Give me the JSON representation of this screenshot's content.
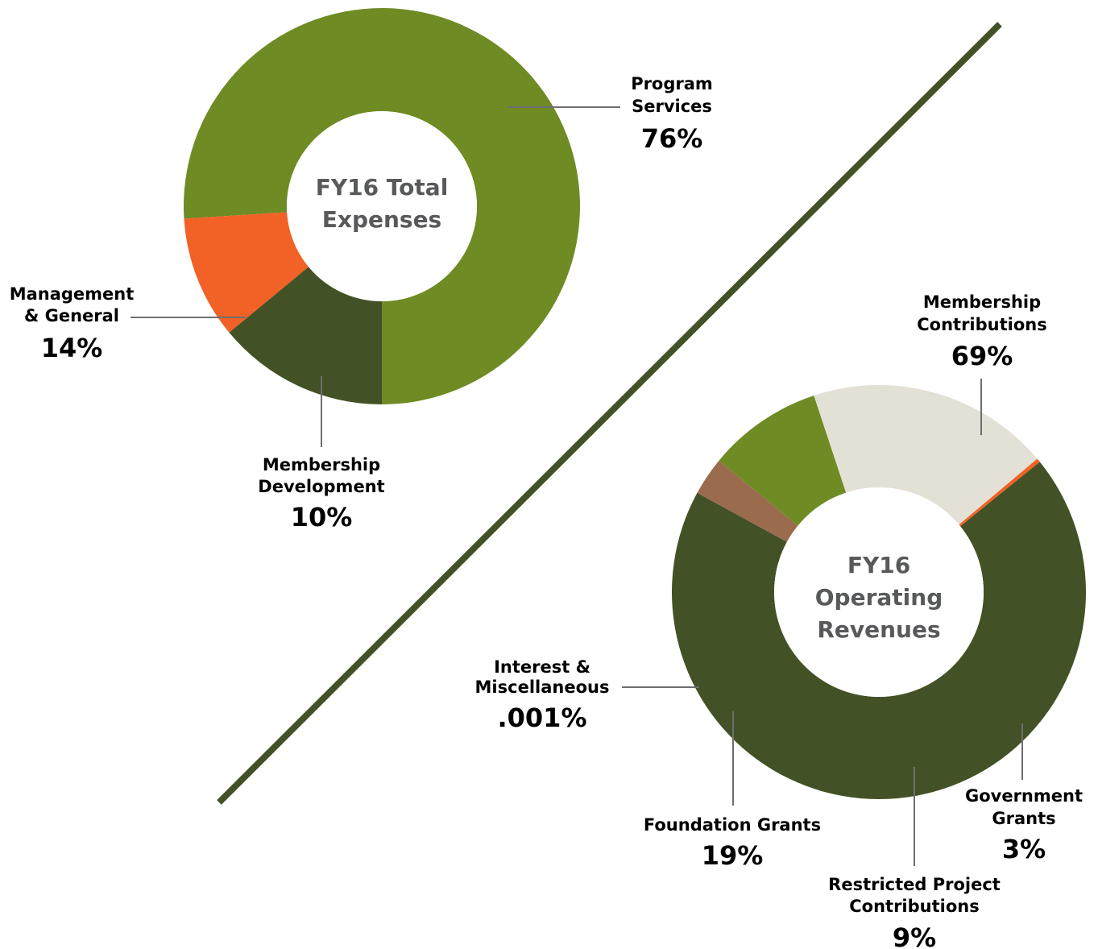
{
  "chart_data": [
    {
      "type": "pie",
      "variant": "donut",
      "title": [
        "FY16 Total",
        "Expenses"
      ],
      "series": [
        {
          "name": [
            "Program",
            "Services"
          ],
          "label": "76%",
          "value": 76,
          "color": "#6e8b24"
        },
        {
          "name": [
            "Membership",
            "Development"
          ],
          "label": "10%",
          "value": 10,
          "color": "#f26125"
        },
        {
          "name": [
            "Management",
            "& General"
          ],
          "label": "14%",
          "value": 14,
          "color": "#435226"
        }
      ]
    },
    {
      "type": "pie",
      "variant": "donut",
      "title": [
        "FY16",
        "Operating",
        "Revenues"
      ],
      "series": [
        {
          "name": [
            "Membership",
            "Contributions"
          ],
          "label": "69%",
          "value": 69,
          "color": "#435226"
        },
        {
          "name": [
            "Government",
            "Grants"
          ],
          "label": "3%",
          "value": 3,
          "color": "#9a6c4d"
        },
        {
          "name": [
            "Restricted Project",
            "Contributions"
          ],
          "label": "9%",
          "value": 9,
          "color": "#6e8b24"
        },
        {
          "name": [
            "Foundation Grants"
          ],
          "label": "19%",
          "value": 19,
          "color": "#e3e1d5"
        },
        {
          "name": [
            "Interest &",
            "Miscellaneous"
          ],
          "label": ".001%",
          "value": 0.001,
          "color": "#f26125"
        }
      ]
    }
  ],
  "colors": {
    "divider": "#435226",
    "center_text": "#58595b",
    "leader": "#6d6e71"
  }
}
